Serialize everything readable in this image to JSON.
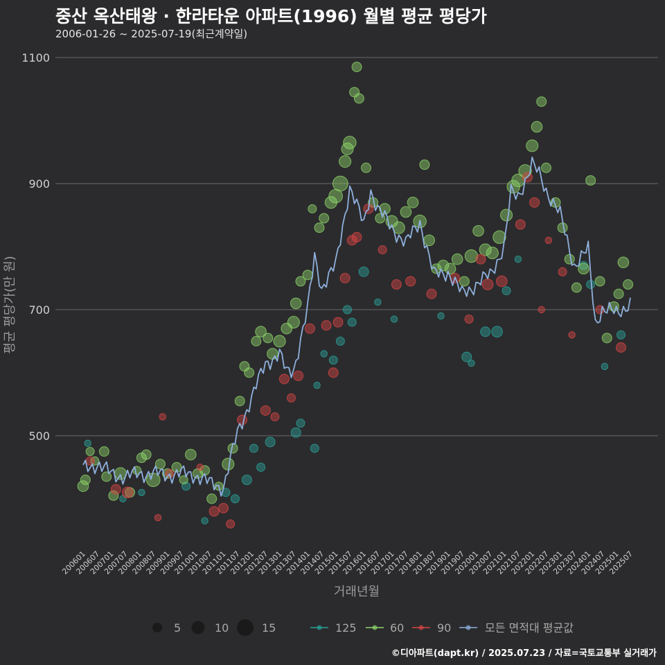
{
  "title": "중산 옥산태왕 · 한라타운 아파트(1996) 월별 평균 평당가",
  "subtitle": "2006-01-26 ~ 2025-07-19(최근계약일)",
  "caption": "©디아파트(dapt.kr) / 2025.07.23 / 자료=국토교통부 실거래가",
  "colors": {
    "background": "#2b2b2d",
    "grid": "#6a6a6a",
    "s125": "#2aa198",
    "s60": "#8fd46a",
    "s90": "#d94545",
    "avg": "#8fb0dc"
  },
  "chart_data": {
    "type": "scatter",
    "xlabel": "거래년월",
    "ylabel": "평균 평당가(만 원)",
    "ylim": [
      330,
      1110
    ],
    "y_ticks": [
      500,
      700,
      900,
      1100
    ],
    "x_ticks": [
      "200601",
      "200607",
      "200701",
      "200707",
      "200801",
      "200807",
      "200901",
      "200907",
      "201001",
      "201007",
      "201101",
      "201107",
      "201201",
      "201207",
      "201301",
      "201307",
      "201401",
      "201407",
      "201501",
      "201507",
      "201601",
      "201607",
      "201701",
      "201707",
      "201801",
      "201807",
      "201901",
      "201907",
      "202001",
      "202007",
      "202101",
      "202107",
      "202201",
      "202207",
      "202301",
      "202307",
      "202401",
      "202407",
      "202501",
      "202507"
    ],
    "x_range": [
      "2006-01",
      "2025-07"
    ],
    "legend": {
      "size_title": "",
      "sizes": [
        5,
        10,
        15
      ],
      "series_names": [
        "125",
        "60",
        "90",
        "모든 면적대 평균값"
      ]
    },
    "avg_line": {
      "name": "모든 면적대 평균값",
      "anchors": [
        [
          "2006-01",
          448
        ],
        [
          "2006-07",
          455
        ],
        [
          "2007-01",
          440
        ],
        [
          "2007-07",
          435
        ],
        [
          "2008-01",
          440
        ],
        [
          "2008-07",
          440
        ],
        [
          "2009-01",
          438
        ],
        [
          "2009-07",
          440
        ],
        [
          "2010-01",
          438
        ],
        [
          "2010-07",
          425
        ],
        [
          "2011-01",
          418
        ],
        [
          "2011-07",
          505
        ],
        [
          "2012-01",
          560
        ],
        [
          "2012-07",
          615
        ],
        [
          "2013-01",
          630
        ],
        [
          "2013-04",
          600
        ],
        [
          "2013-07",
          605
        ],
        [
          "2014-01",
          700
        ],
        [
          "2014-04",
          785
        ],
        [
          "2014-07",
          735
        ],
        [
          "2015-01",
          770
        ],
        [
          "2015-07",
          895
        ],
        [
          "2016-01",
          835
        ],
        [
          "2016-04",
          890
        ],
        [
          "2016-07",
          860
        ],
        [
          "2017-01",
          830
        ],
        [
          "2017-07",
          805
        ],
        [
          "2018-01",
          840
        ],
        [
          "2018-07",
          755
        ],
        [
          "2019-01",
          760
        ],
        [
          "2019-07",
          725
        ],
        [
          "2020-01",
          740
        ],
        [
          "2020-07",
          755
        ],
        [
          "2021-01",
          800
        ],
        [
          "2021-04",
          885
        ],
        [
          "2021-07",
          880
        ],
        [
          "2022-01",
          930
        ],
        [
          "2022-04",
          915
        ],
        [
          "2022-07",
          890
        ],
        [
          "2023-01",
          850
        ],
        [
          "2023-07",
          770
        ],
        [
          "2024-01",
          795
        ],
        [
          "2024-04",
          680
        ],
        [
          "2024-07",
          700
        ],
        [
          "2025-01",
          695
        ],
        [
          "2025-07",
          710
        ]
      ]
    },
    "series": [
      {
        "name": "125",
        "points": [
          [
            "2006-03",
            488,
            1
          ],
          [
            "2007-06",
            400,
            1
          ],
          [
            "2008-02",
            410,
            1
          ],
          [
            "2009-09",
            420,
            2
          ],
          [
            "2010-05",
            365,
            1
          ],
          [
            "2011-02",
            410,
            2
          ],
          [
            "2011-06",
            400,
            2
          ],
          [
            "2011-11",
            430,
            3
          ],
          [
            "2012-02",
            480,
            2
          ],
          [
            "2012-05",
            450,
            2
          ],
          [
            "2012-09",
            490,
            3
          ],
          [
            "2013-08",
            505,
            3
          ],
          [
            "2013-10",
            520,
            2
          ],
          [
            "2014-04",
            480,
            2
          ],
          [
            "2014-05",
            580,
            1
          ],
          [
            "2014-08",
            630,
            1
          ],
          [
            "2014-12",
            620,
            2
          ],
          [
            "2015-03",
            650,
            2
          ],
          [
            "2015-06",
            700,
            2
          ],
          [
            "2015-08",
            680,
            2
          ],
          [
            "2016-01",
            760,
            3
          ],
          [
            "2016-07",
            712,
            1
          ],
          [
            "2017-02",
            685,
            1
          ],
          [
            "2018-10",
            690,
            1
          ],
          [
            "2019-09",
            625,
            3
          ],
          [
            "2019-11",
            615,
            1
          ],
          [
            "2020-05",
            665,
            3
          ],
          [
            "2020-10",
            665,
            4
          ],
          [
            "2021-02",
            730,
            2
          ],
          [
            "2021-07",
            780,
            1
          ],
          [
            "2023-11",
            770,
            2
          ],
          [
            "2024-02",
            740,
            2
          ],
          [
            "2024-08",
            610,
            1
          ],
          [
            "2025-03",
            660,
            2
          ]
        ]
      },
      {
        "name": "60",
        "points": [
          [
            "2006-01",
            420,
            4
          ],
          [
            "2006-02",
            430,
            3
          ],
          [
            "2006-04",
            475,
            2
          ],
          [
            "2006-06",
            460,
            2
          ],
          [
            "2006-10",
            475,
            3
          ],
          [
            "2006-11",
            435,
            3
          ],
          [
            "2007-02",
            405,
            3
          ],
          [
            "2007-05",
            440,
            5
          ],
          [
            "2007-09",
            410,
            3
          ],
          [
            "2007-12",
            445,
            2
          ],
          [
            "2008-02",
            465,
            3
          ],
          [
            "2008-04",
            470,
            3
          ],
          [
            "2008-07",
            430,
            7
          ],
          [
            "2008-10",
            455,
            3
          ],
          [
            "2009-01",
            440,
            3
          ],
          [
            "2009-05",
            450,
            3
          ],
          [
            "2009-08",
            430,
            2
          ],
          [
            "2009-11",
            470,
            4
          ],
          [
            "2010-02",
            440,
            3
          ],
          [
            "2010-05",
            445,
            3
          ],
          [
            "2010-08",
            400,
            3
          ],
          [
            "2010-11",
            420,
            2
          ],
          [
            "2011-03",
            455,
            5
          ],
          [
            "2011-05",
            480,
            3
          ],
          [
            "2011-08",
            555,
            3
          ],
          [
            "2011-10",
            610,
            3
          ],
          [
            "2011-12",
            600,
            3
          ],
          [
            "2012-03",
            650,
            3
          ],
          [
            "2012-05",
            665,
            4
          ],
          [
            "2012-08",
            655,
            3
          ],
          [
            "2012-10",
            630,
            4
          ],
          [
            "2013-01",
            650,
            5
          ],
          [
            "2013-04",
            670,
            4
          ],
          [
            "2013-07",
            680,
            5
          ],
          [
            "2013-08",
            710,
            4
          ],
          [
            "2013-10",
            745,
            3
          ],
          [
            "2014-01",
            755,
            3
          ],
          [
            "2014-03",
            860,
            2
          ],
          [
            "2014-06",
            830,
            3
          ],
          [
            "2014-08",
            845,
            3
          ],
          [
            "2014-11",
            870,
            5
          ],
          [
            "2015-01",
            880,
            7
          ],
          [
            "2015-03",
            900,
            9
          ],
          [
            "2015-05",
            935,
            5
          ],
          [
            "2015-06",
            955,
            5
          ],
          [
            "2015-07",
            965,
            6
          ],
          [
            "2015-09",
            1045,
            3
          ],
          [
            "2015-10",
            1085,
            3
          ],
          [
            "2015-11",
            1035,
            3
          ],
          [
            "2016-02",
            925,
            3
          ],
          [
            "2016-05",
            870,
            3
          ],
          [
            "2016-08",
            845,
            3
          ],
          [
            "2016-10",
            860,
            4
          ],
          [
            "2017-01",
            840,
            5
          ],
          [
            "2017-04",
            830,
            5
          ],
          [
            "2017-07",
            855,
            4
          ],
          [
            "2017-10",
            870,
            4
          ],
          [
            "2018-01",
            840,
            6
          ],
          [
            "2018-03",
            930,
            3
          ],
          [
            "2018-05",
            810,
            4
          ],
          [
            "2018-08",
            765,
            3
          ],
          [
            "2018-11",
            770,
            4
          ],
          [
            "2019-02",
            765,
            4
          ],
          [
            "2019-05",
            780,
            4
          ],
          [
            "2019-08",
            745,
            3
          ],
          [
            "2019-11",
            785,
            6
          ],
          [
            "2020-02",
            825,
            4
          ],
          [
            "2020-05",
            795,
            5
          ],
          [
            "2020-08",
            790,
            5
          ],
          [
            "2020-11",
            815,
            6
          ],
          [
            "2021-02",
            850,
            5
          ],
          [
            "2021-05",
            895,
            6
          ],
          [
            "2021-07",
            905,
            6
          ],
          [
            "2021-10",
            920,
            6
          ],
          [
            "2022-01",
            960,
            5
          ],
          [
            "2022-03",
            990,
            4
          ],
          [
            "2022-05",
            1030,
            3
          ],
          [
            "2022-07",
            925,
            3
          ],
          [
            "2022-11",
            870,
            3
          ],
          [
            "2023-02",
            830,
            3
          ],
          [
            "2023-05",
            780,
            3
          ],
          [
            "2023-08",
            735,
            3
          ],
          [
            "2023-11",
            765,
            4
          ],
          [
            "2024-02",
            905,
            3
          ],
          [
            "2024-06",
            745,
            3
          ],
          [
            "2024-09",
            655,
            3
          ],
          [
            "2024-12",
            705,
            3
          ],
          [
            "2025-02",
            725,
            3
          ],
          [
            "2025-04",
            775,
            4
          ],
          [
            "2025-06",
            740,
            3
          ]
        ]
      },
      {
        "name": "90",
        "points": [
          [
            "2006-04",
            460,
            2
          ],
          [
            "2007-03",
            415,
            3
          ],
          [
            "2007-08",
            410,
            4
          ],
          [
            "2008-09",
            370,
            1
          ],
          [
            "2008-11",
            530,
            1
          ],
          [
            "2009-02",
            440,
            2
          ],
          [
            "2010-03",
            450,
            1
          ],
          [
            "2010-09",
            380,
            3
          ],
          [
            "2011-01",
            385,
            3
          ],
          [
            "2011-04",
            360,
            2
          ],
          [
            "2011-09",
            525,
            3
          ],
          [
            "2012-07",
            540,
            3
          ],
          [
            "2012-11",
            530,
            2
          ],
          [
            "2013-03",
            590,
            3
          ],
          [
            "2013-06",
            560,
            2
          ],
          [
            "2013-09",
            595,
            3
          ],
          [
            "2014-02",
            670,
            3
          ],
          [
            "2014-09",
            675,
            3
          ],
          [
            "2014-12",
            600,
            3
          ],
          [
            "2015-02",
            680,
            3
          ],
          [
            "2015-05",
            750,
            3
          ],
          [
            "2015-08",
            810,
            3
          ],
          [
            "2015-10",
            815,
            3
          ],
          [
            "2016-03",
            860,
            3
          ],
          [
            "2016-09",
            795,
            2
          ],
          [
            "2017-03",
            740,
            3
          ],
          [
            "2017-09",
            745,
            3
          ],
          [
            "2018-06",
            725,
            3
          ],
          [
            "2019-04",
            750,
            3
          ],
          [
            "2019-10",
            685,
            2
          ],
          [
            "2020-03",
            780,
            3
          ],
          [
            "2020-06",
            740,
            4
          ],
          [
            "2020-12",
            745,
            4
          ],
          [
            "2021-08",
            835,
            3
          ],
          [
            "2021-11",
            910,
            3
          ],
          [
            "2022-02",
            870,
            3
          ],
          [
            "2022-05",
            700,
            1
          ],
          [
            "2022-08",
            810,
            1
          ],
          [
            "2023-02",
            760,
            2
          ],
          [
            "2023-06",
            660,
            1
          ],
          [
            "2024-06",
            700,
            2
          ],
          [
            "2025-03",
            640,
            3
          ]
        ]
      }
    ]
  }
}
